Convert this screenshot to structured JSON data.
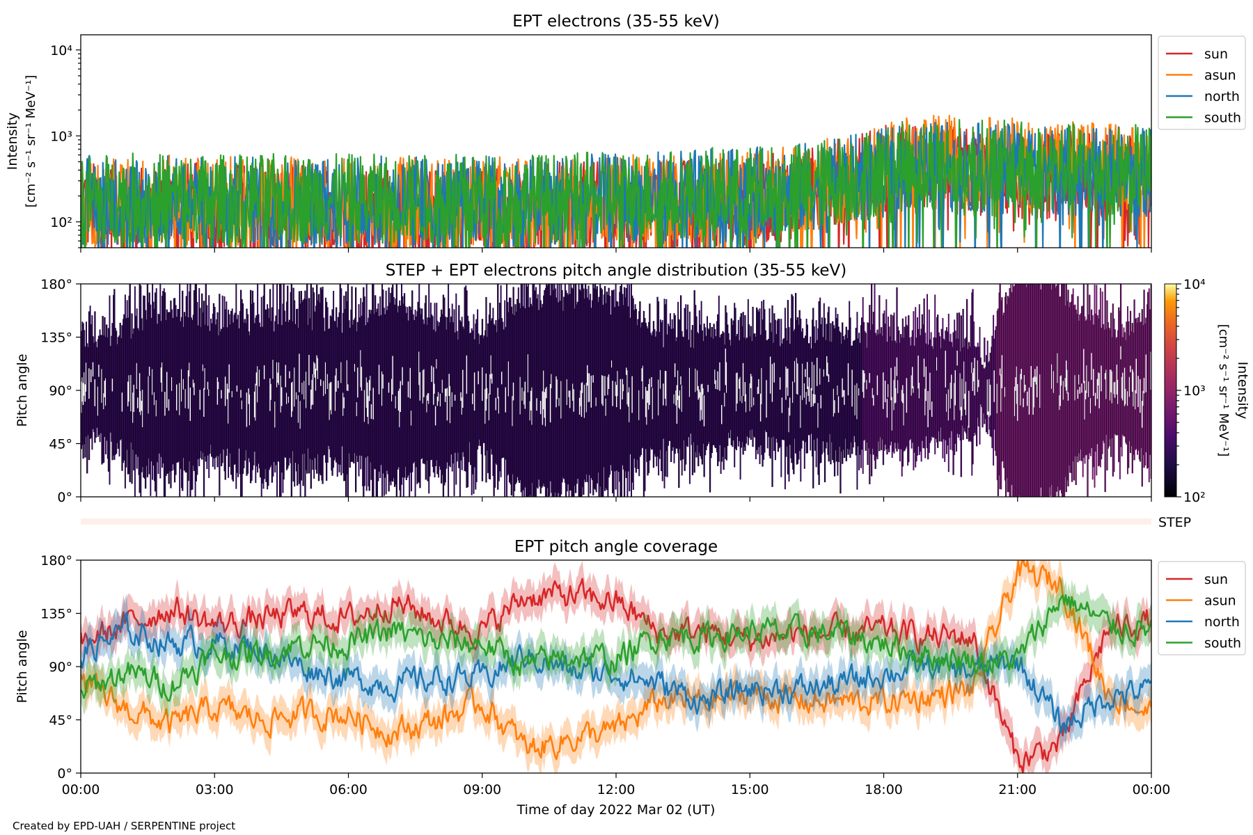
{
  "footer": {
    "credit": "Created by EPD-UAH / SERPENTINE project"
  },
  "colors": {
    "sun": "#d62728",
    "asun": "#ff7f0e",
    "north": "#1f77b4",
    "south": "#2ca02c"
  },
  "chart_data": [
    {
      "type": "line",
      "title": "EPT electrons (35-55 keV)",
      "xlabel": "",
      "ylabel": "Intensity",
      "yunit": "[cm⁻² s⁻¹ sr⁻¹ MeV⁻¹]",
      "yscale": "log",
      "ylim": [
        50,
        15000
      ],
      "yticks": [
        {
          "value": 100,
          "label": "10²"
        },
        {
          "value": 1000,
          "label": "10³"
        },
        {
          "value": 10000,
          "label": "10⁴"
        }
      ],
      "xlim_hours": [
        0,
        24
      ],
      "legend": "outside-right",
      "series": [
        {
          "name": "sun",
          "color": "#d62728",
          "values": [
            150,
            150,
            150,
            150,
            150,
            150,
            140,
            140,
            140,
            140,
            140,
            140,
            140,
            140,
            140,
            150,
            150,
            150,
            150,
            160,
            165,
            170,
            175,
            200,
            230,
            300,
            400,
            420,
            400,
            380,
            360,
            350,
            340,
            330,
            320,
            310
          ]
        },
        {
          "name": "asun",
          "color": "#ff7f0e",
          "values": [
            170,
            170,
            170,
            180,
            180,
            170,
            170,
            170,
            170,
            170,
            170,
            170,
            170,
            170,
            170,
            170,
            170,
            180,
            180,
            190,
            190,
            200,
            210,
            230,
            260,
            320,
            400,
            500,
            550,
            520,
            500,
            480,
            470,
            450,
            440,
            430
          ]
        },
        {
          "name": "north",
          "color": "#1f77b4",
          "values": [
            180,
            180,
            180,
            180,
            175,
            175,
            175,
            175,
            175,
            175,
            175,
            175,
            175,
            175,
            175,
            180,
            180,
            185,
            190,
            200,
            210,
            210,
            220,
            240,
            260,
            300,
            350,
            420,
            450,
            430,
            420,
            410,
            400,
            390,
            380,
            370
          ]
        },
        {
          "name": "south",
          "color": "#2ca02c",
          "values": [
            190,
            190,
            190,
            190,
            185,
            185,
            185,
            185,
            185,
            185,
            185,
            185,
            185,
            185,
            185,
            190,
            190,
            195,
            200,
            210,
            215,
            220,
            225,
            240,
            260,
            320,
            380,
            450,
            500,
            480,
            460,
            450,
            430,
            420,
            410,
            400
          ]
        }
      ]
    },
    {
      "type": "heatmap",
      "title": "STEP + EPT electrons pitch angle distribution (35-55 keV)",
      "xlabel": "",
      "ylabel": "Pitch angle",
      "ylim": [
        0,
        180
      ],
      "yticks": [
        "0°",
        "45°",
        "90°",
        "135°",
        "180°"
      ],
      "colorbar": {
        "label": "Intensity",
        "unit": "[cm⁻² s⁻¹ sr⁻¹ MeV⁻¹]",
        "scale": "log",
        "range": [
          100,
          10000
        ],
        "ticks": [
          "10²",
          "10³",
          "10⁴"
        ],
        "colormap": "inferno"
      },
      "instrument_label": "STEP"
    },
    {
      "type": "line",
      "title": "EPT pitch angle coverage",
      "xlabel": "Time of day 2022 Mar 02 (UT)",
      "ylabel": "Pitch angle",
      "ylim": [
        0,
        180
      ],
      "yticks": [
        "0°",
        "45°",
        "90°",
        "135°",
        "180°"
      ],
      "xticks": [
        "00:00",
        "03:00",
        "06:00",
        "09:00",
        "12:00",
        "15:00",
        "18:00",
        "21:00",
        "00:00"
      ],
      "x_hours": [
        0,
        1,
        2,
        3,
        4,
        5,
        6,
        7,
        8,
        9,
        10,
        11,
        12,
        13,
        14,
        15,
        16,
        17,
        18,
        19,
        20,
        21,
        22,
        23,
        24
      ],
      "legend": "outside-right",
      "series": [
        {
          "name": "sun",
          "color": "#d62728",
          "values": [
            110,
            125,
            140,
            125,
            130,
            135,
            130,
            145,
            130,
            120,
            150,
            150,
            145,
            118,
            120,
            112,
            118,
            118,
            120,
            115,
            115,
            10,
            25,
            120,
            130
          ]
        },
        {
          "name": "asun",
          "color": "#ff7f0e",
          "values": [
            75,
            55,
            40,
            55,
            45,
            50,
            50,
            35,
            45,
            60,
            20,
            30,
            35,
            62,
            60,
            68,
            62,
            60,
            60,
            65,
            70,
            170,
            160,
            70,
            50
          ]
        },
        {
          "name": "north",
          "color": "#1f77b4",
          "values": [
            100,
            120,
            110,
            110,
            105,
            90,
            80,
            75,
            80,
            80,
            100,
            85,
            85,
            75,
            60,
            72,
            70,
            75,
            85,
            90,
            85,
            95,
            40,
            65,
            70
          ]
        },
        {
          "name": "south",
          "color": "#2ca02c",
          "values": [
            70,
            85,
            75,
            100,
            100,
            110,
            110,
            120,
            110,
            110,
            90,
            100,
            95,
            118,
            115,
            120,
            118,
            118,
            110,
            100,
            95,
            95,
            150,
            125,
            120
          ]
        }
      ]
    }
  ]
}
